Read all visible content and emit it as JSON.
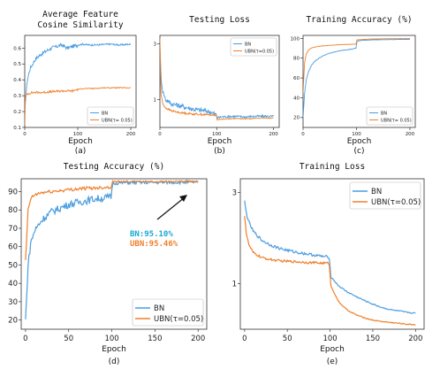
{
  "colors": {
    "bn": "#4a9de0",
    "ubn": "#f07f2a",
    "annot_bn": "#1aa7d6",
    "annot_ubn": "#f07f2a"
  },
  "chart_data": [
    {
      "id": "a",
      "type": "line",
      "title": [
        "Average Feature",
        "Cosine Similarity"
      ],
      "xlabel": "Epoch",
      "ylabel": "",
      "caption": "(a)",
      "xlim": [
        0,
        210
      ],
      "ylim": [
        0.1,
        0.68
      ],
      "xticks": [
        0,
        100,
        200
      ],
      "yticks": [
        0.1,
        0.2,
        0.3,
        0.4,
        0.5,
        0.6
      ],
      "ytick_labels": [
        "0.1",
        "0.2",
        "0.3",
        "0.4",
        "0.5",
        "0.6"
      ],
      "legend": {
        "position": "bottom-right",
        "entries": [
          "BN",
          "UBN(τ= 0.05)"
        ]
      },
      "series": [
        {
          "name": "BN",
          "color_key": "bn",
          "x": [
            0,
            2,
            5,
            10,
            15,
            20,
            30,
            40,
            50,
            60,
            70,
            80,
            90,
            100,
            110,
            120,
            140,
            160,
            180,
            200
          ],
          "y": [
            0.2,
            0.3,
            0.4,
            0.47,
            0.5,
            0.53,
            0.56,
            0.58,
            0.6,
            0.61,
            0.62,
            0.6,
            0.61,
            0.62,
            0.625,
            0.62,
            0.62,
            0.625,
            0.62,
            0.625
          ],
          "noise": 0.012
        },
        {
          "name": "UBN(τ= 0.05)",
          "color_key": "ubn",
          "x": [
            0,
            1,
            2,
            4,
            8,
            15,
            30,
            50,
            70,
            90,
            100,
            110,
            130,
            150,
            170,
            200
          ],
          "y": [
            0.12,
            0.24,
            0.3,
            0.31,
            0.315,
            0.32,
            0.32,
            0.325,
            0.33,
            0.33,
            0.34,
            0.345,
            0.345,
            0.35,
            0.35,
            0.35
          ],
          "noise": 0.007
        }
      ]
    },
    {
      "id": "b",
      "type": "line",
      "title": [
        "Testing Loss"
      ],
      "xlabel": "Epoch",
      "ylabel": "",
      "caption": "(b)",
      "xlim": [
        0,
        210
      ],
      "ylim": [
        0.0,
        3.3
      ],
      "xticks": [
        0,
        100,
        200
      ],
      "yticks": [
        1,
        3
      ],
      "ytick_labels": [
        "1",
        "3"
      ],
      "legend": {
        "position": "top-right",
        "entries": [
          "BN",
          "UBN(τ=0.05)"
        ]
      },
      "series": [
        {
          "name": "BN",
          "color_key": "bn",
          "x": [
            0,
            2,
            5,
            10,
            20,
            30,
            40,
            50,
            60,
            70,
            80,
            90,
            99,
            101,
            110,
            130,
            150,
            170,
            200
          ],
          "y": [
            3.0,
            1.8,
            1.3,
            1.0,
            0.85,
            0.8,
            0.75,
            0.7,
            0.65,
            0.62,
            0.6,
            0.55,
            0.45,
            0.35,
            0.38,
            0.4,
            0.38,
            0.4,
            0.4
          ],
          "noise": 0.09
        },
        {
          "name": "UBN(τ=0.05)",
          "color_key": "ubn",
          "x": [
            0,
            2,
            5,
            10,
            20,
            30,
            40,
            50,
            60,
            70,
            80,
            90,
            99,
            101,
            110,
            130,
            150,
            170,
            200
          ],
          "y": [
            3.2,
            1.2,
            0.85,
            0.7,
            0.6,
            0.55,
            0.52,
            0.5,
            0.48,
            0.47,
            0.46,
            0.45,
            0.44,
            0.28,
            0.3,
            0.32,
            0.31,
            0.33,
            0.34
          ],
          "noise": 0.035
        }
      ]
    },
    {
      "id": "c",
      "type": "line",
      "title": [
        "Training Accuracy (%)"
      ],
      "xlabel": "Epoch",
      "ylabel": "",
      "caption": "(c)",
      "xlim": [
        0,
        210
      ],
      "ylim": [
        10,
        103
      ],
      "xticks": [
        0,
        100,
        200
      ],
      "yticks": [
        20,
        40,
        60,
        80,
        100
      ],
      "ytick_labels": [
        "20",
        "40",
        "60",
        "80",
        "100"
      ],
      "legend": {
        "position": "bottom-right",
        "entries": [
          "BN",
          "UBN(τ= 0.05)"
        ]
      },
      "series": [
        {
          "name": "BN",
          "color_key": "bn",
          "x": [
            0,
            3,
            6,
            10,
            15,
            20,
            30,
            40,
            50,
            60,
            70,
            80,
            90,
            99,
            101,
            110,
            130,
            150,
            200
          ],
          "y": [
            20,
            45,
            58,
            66,
            72,
            76,
            80,
            83,
            85,
            86.5,
            87.5,
            88.5,
            89,
            90,
            97,
            98,
            98.5,
            98.7,
            99
          ],
          "noise": 0.3
        },
        {
          "name": "UBN(τ= 0.05)",
          "color_key": "ubn",
          "x": [
            0,
            3,
            6,
            10,
            15,
            20,
            30,
            40,
            50,
            60,
            70,
            80,
            90,
            99,
            101,
            120,
            150,
            200
          ],
          "y": [
            45,
            76,
            84,
            88,
            90,
            91,
            92,
            92.5,
            93,
            93.3,
            93.6,
            93.8,
            94,
            94.2,
            98.5,
            99.2,
            99.6,
            99.8
          ],
          "noise": 0.2
        }
      ]
    },
    {
      "id": "d",
      "type": "line",
      "title": [
        "Testing Accuracy (%)"
      ],
      "xlabel": "Epoch",
      "ylabel": "",
      "caption": "(d)",
      "xlim": [
        -5,
        210
      ],
      "ylim": [
        15,
        97
      ],
      "xticks": [
        0,
        50,
        100,
        150,
        200
      ],
      "yticks": [
        20,
        30,
        40,
        50,
        60,
        70,
        80,
        90
      ],
      "ytick_labels": [
        "20",
        "30",
        "40",
        "50",
        "60",
        "70",
        "80",
        "90"
      ],
      "legend": {
        "position": "bottom-right",
        "entries": [
          "BN",
          "UBN(τ=0.05)"
        ]
      },
      "annotations": [
        {
          "text": "BN:95.10%",
          "color_key": "annot_bn"
        },
        {
          "text": "UBN:95.46%",
          "color_key": "annot_ubn"
        }
      ],
      "series": [
        {
          "name": "BN",
          "color_key": "bn",
          "x": [
            0,
            3,
            6,
            10,
            15,
            20,
            25,
            30,
            40,
            50,
            60,
            70,
            80,
            90,
            99,
            101,
            110,
            130,
            150,
            170,
            200
          ],
          "y": [
            20,
            50,
            62,
            68,
            72,
            75,
            77,
            79,
            81,
            83,
            84,
            85,
            86,
            86.5,
            87,
            94.5,
            94.8,
            95,
            95,
            95.1,
            95.1
          ],
          "noise": 2.0
        },
        {
          "name": "UBN(τ=0.05)",
          "color_key": "ubn",
          "x": [
            0,
            3,
            6,
            10,
            15,
            20,
            30,
            40,
            50,
            60,
            70,
            80,
            90,
            99,
            101,
            110,
            130,
            150,
            170,
            200
          ],
          "y": [
            52,
            80,
            86,
            88,
            89,
            89.5,
            90,
            90.5,
            91,
            91.5,
            91.8,
            92,
            92.3,
            92.5,
            95.5,
            95.5,
            95.4,
            95.4,
            95.5,
            95.46
          ],
          "noise": 0.9
        }
      ]
    },
    {
      "id": "e",
      "type": "line",
      "title": [
        "Training Loss"
      ],
      "xlabel": "Epoch",
      "ylabel": "",
      "caption": "(e)",
      "xlim": [
        -5,
        210
      ],
      "ylim": [
        0.0,
        3.3
      ],
      "xticks": [
        0,
        50,
        100,
        150,
        200
      ],
      "yticks": [
        1,
        3
      ],
      "ytick_labels": [
        "1",
        "3"
      ],
      "legend": {
        "position": "top-right",
        "entries": [
          "BN",
          "UBN(τ=0.05)"
        ]
      },
      "series": [
        {
          "name": "BN",
          "color_key": "bn",
          "x": [
            0,
            2,
            5,
            10,
            20,
            30,
            40,
            50,
            60,
            70,
            80,
            90,
            99,
            101,
            110,
            120,
            130,
            140,
            150,
            160,
            170,
            180,
            190,
            200
          ],
          "y": [
            2.8,
            2.55,
            2.35,
            2.15,
            1.95,
            1.85,
            1.78,
            1.73,
            1.69,
            1.66,
            1.63,
            1.6,
            1.58,
            1.15,
            0.95,
            0.82,
            0.72,
            0.63,
            0.55,
            0.48,
            0.43,
            0.4,
            0.37,
            0.35
          ],
          "noise": 0.03
        },
        {
          "name": "UBN(τ=0.05)",
          "color_key": "ubn",
          "x": [
            0,
            2,
            5,
            10,
            20,
            30,
            40,
            50,
            60,
            70,
            80,
            90,
            99,
            101,
            110,
            120,
            130,
            140,
            150,
            160,
            170,
            180,
            190,
            200
          ],
          "y": [
            2.5,
            2.1,
            1.85,
            1.68,
            1.57,
            1.53,
            1.5,
            1.49,
            1.48,
            1.47,
            1.46,
            1.45,
            1.45,
            0.95,
            0.6,
            0.42,
            0.32,
            0.25,
            0.2,
            0.17,
            0.15,
            0.13,
            0.11,
            0.1
          ],
          "noise": 0.025
        }
      ]
    }
  ]
}
